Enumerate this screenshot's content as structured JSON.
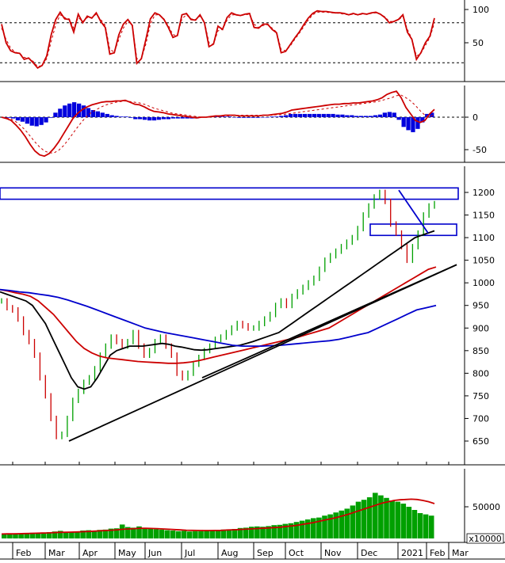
{
  "chart_data": [
    {
      "type": "line",
      "panel": "stochastic",
      "ylim": [
        0,
        100
      ],
      "y_ticks": [
        50,
        100
      ],
      "reference_levels": [
        20,
        80
      ],
      "series": [
        {
          "color": "#cc0000",
          "style": "solid",
          "values": [
            78,
            50,
            38,
            35,
            34,
            25,
            27,
            20,
            12,
            16,
            30,
            62,
            85,
            96,
            86,
            85,
            66,
            93,
            80,
            90,
            87,
            95,
            82,
            73,
            33,
            35,
            62,
            78,
            85,
            76,
            19,
            26,
            55,
            86,
            95,
            92,
            85,
            73,
            58,
            61,
            92,
            94,
            85,
            84,
            92,
            80,
            44,
            48,
            75,
            70,
            88,
            95,
            92,
            91,
            93,
            94,
            73,
            72,
            78,
            78,
            70,
            65,
            35,
            37,
            47,
            57,
            66,
            77,
            87,
            94,
            98,
            97,
            97,
            96,
            95,
            95,
            94,
            92,
            94,
            92,
            94,
            93,
            95,
            96,
            93,
            88,
            80,
            82,
            85,
            92,
            66,
            55,
            25,
            35,
            50,
            60,
            87
          ]
        },
        {
          "color": "#cc0000",
          "style": "dashed",
          "values": [
            72,
            55,
            42,
            36,
            34,
            28,
            27,
            22,
            14,
            16,
            26,
            52,
            77,
            92,
            88,
            86,
            72,
            88,
            82,
            88,
            88,
            93,
            85,
            76,
            40,
            36,
            55,
            72,
            82,
            78,
            26,
            26,
            48,
            78,
            92,
            92,
            86,
            76,
            62,
            61,
            86,
            92,
            86,
            85,
            90,
            82,
            50,
            48,
            68,
            70,
            84,
            92,
            92,
            91,
            92,
            93,
            78,
            73,
            76,
            77,
            72,
            66,
            40,
            38,
            45,
            55,
            64,
            74,
            84,
            92,
            96,
            96,
            96,
            95,
            95,
            94,
            93,
            92,
            93,
            92,
            93,
            93,
            94,
            95,
            93,
            89,
            82,
            82,
            84,
            90,
            70,
            56,
            30,
            34,
            46,
            58,
            80
          ]
        }
      ]
    },
    {
      "type": "bar",
      "panel": "macd",
      "ylim": [
        -70,
        50
      ],
      "y_ticks": [
        -50,
        0
      ],
      "series": [
        {
          "name": "MACD",
          "color": "#cc0000",
          "style": "solid",
          "values": [
            0,
            -2,
            -5,
            -12,
            -20,
            -30,
            -42,
            -52,
            -58,
            -60,
            -56,
            -48,
            -38,
            -26,
            -14,
            -2,
            6,
            12,
            16,
            19,
            21,
            23,
            24,
            24,
            25,
            25,
            26,
            23,
            20,
            19,
            16,
            12,
            9,
            8,
            7,
            5,
            4,
            3,
            2,
            1,
            0,
            -1,
            0,
            0,
            1,
            2,
            2,
            3,
            3,
            3,
            2,
            2,
            2,
            2,
            2,
            3,
            3,
            4,
            5,
            6,
            8,
            11,
            12,
            13,
            14,
            15,
            16,
            17,
            18,
            19,
            20,
            20,
            21,
            21,
            22,
            22,
            23,
            24,
            25,
            27,
            30,
            35,
            38,
            40,
            30,
            15,
            5,
            -5,
            -8,
            -5,
            5,
            12
          ]
        },
        {
          "name": "Signal",
          "color": "#cc0000",
          "style": "dashed",
          "values": [
            0,
            -1,
            -3,
            -7,
            -13,
            -20,
            -29,
            -38,
            -46,
            -52,
            -55,
            -55,
            -51,
            -44,
            -35,
            -25,
            -15,
            -6,
            2,
            8,
            12,
            16,
            19,
            21,
            23,
            24,
            25,
            24,
            23,
            22,
            20,
            17,
            14,
            12,
            10,
            8,
            6,
            5,
            4,
            3,
            2,
            1,
            0,
            0,
            0,
            1,
            1,
            2,
            2,
            3,
            3,
            3,
            3,
            3,
            3,
            3,
            3,
            3,
            4,
            4,
            5,
            6,
            7,
            8,
            9,
            10,
            11,
            12,
            13,
            14,
            15,
            16,
            17,
            18,
            19,
            20,
            21,
            22,
            23,
            24,
            26,
            28,
            30,
            33,
            34,
            30,
            25,
            18,
            10,
            3,
            0,
            5
          ]
        },
        {
          "name": "Histogram",
          "color": "#0000dd",
          "values": [
            0,
            -1,
            -2,
            -5,
            -7,
            -10,
            -13,
            -14,
            -12,
            -8,
            -1,
            7,
            13,
            18,
            21,
            23,
            21,
            18,
            14,
            11,
            9,
            7,
            5,
            3,
            2,
            1,
            1,
            -1,
            -3,
            -3,
            -4,
            -5,
            -5,
            -4,
            -3,
            -3,
            -2,
            -2,
            -2,
            -2,
            -2,
            -2,
            0,
            0,
            1,
            1,
            1,
            1,
            1,
            0,
            -1,
            -1,
            -1,
            -1,
            -1,
            0,
            0,
            1,
            1,
            2,
            3,
            5,
            5,
            5,
            5,
            5,
            5,
            5,
            5,
            5,
            5,
            4,
            4,
            3,
            3,
            2,
            2,
            2,
            2,
            3,
            4,
            7,
            8,
            7,
            -4,
            -15,
            -20,
            -23,
            -18,
            -8,
            5,
            7
          ]
        }
      ]
    },
    {
      "type": "line",
      "panel": "price",
      "ylim": [
        600,
        1230
      ],
      "y_ticks": [
        650,
        700,
        750,
        800,
        850,
        900,
        950,
        1000,
        1050,
        1100,
        1150,
        1200
      ],
      "x_labels": [
        "Feb",
        "Mar",
        "Apr",
        "May",
        "Jun",
        "Jul",
        "Aug",
        "Sep",
        "Oct",
        "Nov",
        "Dec",
        "2021",
        "Feb",
        "Mar"
      ],
      "series": [
        {
          "name": "Price",
          "color": "#00a000",
          "values": [
            960,
            945,
            940,
            920,
            890,
            870,
            840,
            790,
            750,
            700,
            660,
            665,
            700,
            740,
            760,
            780,
            790,
            810,
            840,
            860,
            880,
            870,
            860,
            870,
            890,
            860,
            840,
            850,
            870,
            880,
            860,
            840,
            800,
            790,
            800,
            820,
            835,
            850,
            860,
            875,
            880,
            890,
            900,
            910,
            905,
            900,
            900,
            910,
            920,
            930,
            950,
            960,
            950,
            970,
            980,
            990,
            1000,
            1010,
            1030,
            1050,
            1060,
            1070,
            1080,
            1090,
            1100,
            1120,
            1150,
            1170,
            1190,
            1200,
            1180,
            1130,
            1110,
            1080,
            1050,
            1080,
            1110,
            1150,
            1170,
            1175
          ]
        },
        {
          "name": "MA50",
          "color": "#000000",
          "values": [
            980,
            975,
            970,
            965,
            960,
            950,
            930,
            910,
            880,
            850,
            820,
            790,
            770,
            765,
            770,
            790,
            815,
            840,
            850,
            855,
            860,
            860,
            860,
            862,
            864,
            866,
            864,
            860,
            858,
            855,
            852,
            851,
            852,
            854,
            856,
            858,
            860,
            862,
            866,
            870,
            875,
            880,
            885,
            890,
            900,
            910,
            920,
            930,
            940,
            950,
            960,
            970,
            980,
            990,
            1000,
            1010,
            1020,
            1030,
            1040,
            1050,
            1060,
            1070,
            1080,
            1090,
            1100,
            1105,
            1110,
            1115
          ]
        },
        {
          "name": "MA100",
          "color": "#cc0000",
          "values": [
            985,
            982,
            978,
            975,
            970,
            960,
            945,
            930,
            910,
            890,
            870,
            855,
            845,
            838,
            834,
            832,
            830,
            828,
            826,
            825,
            824,
            823,
            822,
            822,
            823,
            825,
            828,
            832,
            836,
            840,
            844,
            848,
            852,
            856,
            860,
            864,
            868,
            872,
            876,
            880,
            885,
            890,
            895,
            900,
            910,
            920,
            930,
            940,
            950,
            960,
            970,
            980,
            990,
            1000,
            1010,
            1020,
            1030,
            1035
          ]
        },
        {
          "name": "MA200",
          "color": "#0000cc",
          "values": [
            985,
            983,
            980,
            978,
            975,
            972,
            968,
            962,
            955,
            948,
            940,
            932,
            924,
            916,
            908,
            900,
            895,
            890,
            886,
            882,
            878,
            874,
            870,
            866,
            862,
            860,
            860,
            860,
            861,
            862,
            864,
            866,
            868,
            870,
            872,
            875,
            880,
            885,
            890,
            900,
            910,
            920,
            930,
            940,
            945,
            950
          ]
        },
        {
          "name": "Trendline 1",
          "color": "#000000",
          "values": [
            650,
            1040
          ]
        },
        {
          "name": "Trendline 2",
          "color": "#000000",
          "values": [
            790,
            1040
          ]
        },
        {
          "name": "Triangle line",
          "color": "#0000cc",
          "values": [
            1205,
            1110
          ]
        }
      ],
      "annotations": [
        {
          "type": "box",
          "color": "#0000cc",
          "range": [
            1185,
            1210
          ]
        },
        {
          "type": "box",
          "color": "#0000cc",
          "range": [
            1105,
            1130
          ]
        }
      ]
    },
    {
      "type": "bar",
      "panel": "volume",
      "y_ticks": [
        50000
      ],
      "unit_label": "x10000",
      "series": [
        {
          "name": "Volume",
          "color": "#00a000",
          "values": [
            7000,
            7500,
            7200,
            8000,
            8500,
            9000,
            8800,
            9500,
            10000,
            11000,
            12000,
            9500,
            10500,
            11000,
            12500,
            13000,
            12000,
            13500,
            14000,
            15500,
            16000,
            22000,
            18000,
            17000,
            19000,
            16000,
            15000,
            14500,
            14000,
            13000,
            12500,
            11500,
            12000,
            11000,
            11500,
            11500,
            12000,
            13000,
            13500,
            14000,
            14500,
            15000,
            16500,
            17000,
            18500,
            19000,
            18500,
            19500,
            21000,
            21500,
            23000,
            24000,
            26000,
            28000,
            30000,
            32000,
            33000,
            36000,
            38000,
            41000,
            44000,
            47000,
            52000,
            58000,
            61000,
            65000,
            72000,
            68000,
            64000,
            60000,
            58000,
            55000,
            50000,
            45000,
            40000,
            38000,
            36000
          ]
        },
        {
          "name": "Volume MA",
          "color": "#cc0000",
          "values": [
            7000,
            7200,
            7300,
            7500,
            7800,
            8000,
            8200,
            8500,
            8800,
            9200,
            9600,
            9800,
            10000,
            10300,
            10600,
            11000,
            11500,
            12000,
            12500,
            13000,
            13500,
            14500,
            15000,
            15500,
            16000,
            16000,
            15800,
            15500,
            15000,
            14500,
            14000,
            13500,
            13000,
            12800,
            12600,
            12500,
            12500,
            12600,
            12800,
            13200,
            13600,
            14000,
            14500,
            15000,
            15500,
            16000,
            16500,
            17000,
            17500,
            18500,
            19500,
            20500,
            22000,
            23500,
            25000,
            27000,
            29000,
            31000,
            33000,
            35500,
            38000,
            41000,
            44000,
            47000,
            50000,
            53000,
            56000,
            58000,
            60000,
            61000,
            61500,
            62000,
            61500,
            60000,
            58000,
            55000
          ]
        }
      ]
    }
  ]
}
